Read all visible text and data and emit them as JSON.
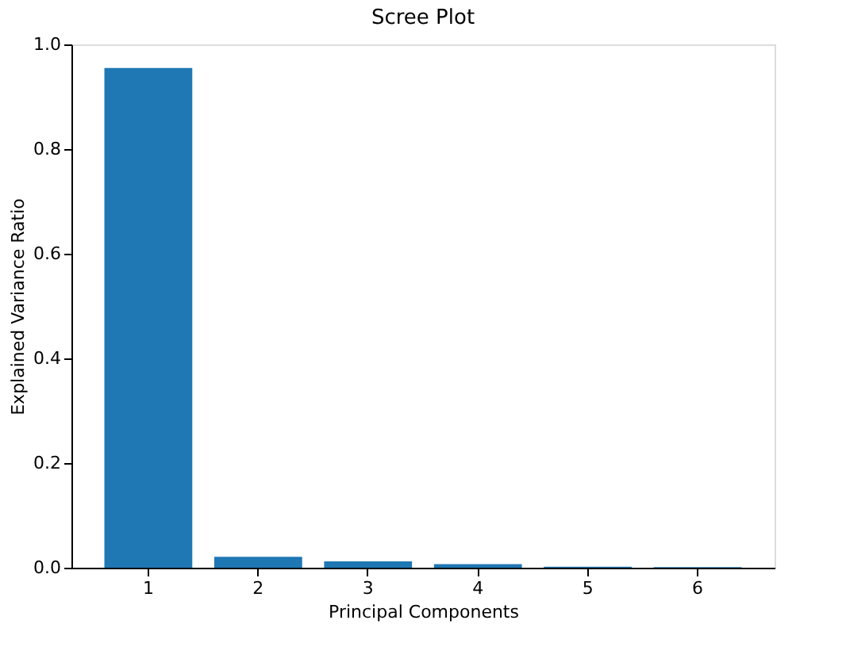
{
  "chart_data": {
    "type": "bar",
    "title": "Scree Plot",
    "xlabel": "Principal Components",
    "ylabel": "Explained Variance Ratio",
    "categories": [
      "1",
      "2",
      "3",
      "4",
      "5",
      "6"
    ],
    "series": [
      {
        "color": "#1f77b4",
        "values": [
          0.955,
          0.021,
          0.012,
          0.007,
          0.002,
          0.001
        ]
      }
    ],
    "ylim": [
      0,
      1
    ],
    "yticks": [
      {
        "value": 0,
        "label": "0.0"
      },
      {
        "value": 0.2,
        "label": "0.2"
      },
      {
        "value": 0.4,
        "label": "0.4"
      },
      {
        "value": 0.6,
        "label": "0.6"
      },
      {
        "value": 0.8,
        "label": "0.8"
      },
      {
        "value": 1,
        "label": "1.0"
      }
    ],
    "grid": false
  }
}
